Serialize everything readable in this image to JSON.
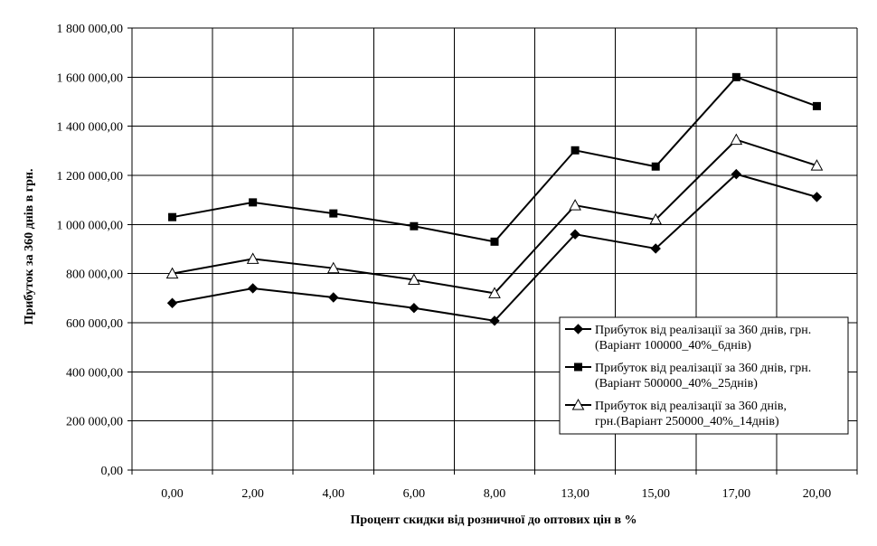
{
  "chart_data": {
    "type": "line",
    "xlabel": "Процент скидки від розничної до оптових цін в %",
    "ylabel": "Прибуток за 360 днів в грн.",
    "categories": [
      "0,00",
      "2,00",
      "4,00",
      "6,00",
      "8,00",
      "13,00",
      "15,00",
      "17,00",
      "20,00"
    ],
    "ylim": [
      0,
      1800000
    ],
    "yticks": [
      0,
      200000,
      400000,
      600000,
      800000,
      1000000,
      1200000,
      1400000,
      1600000,
      1800000
    ],
    "ytick_labels": [
      "0,00",
      "200 000,00",
      "400 000,00",
      "600 000,00",
      "800 000,00",
      "1 000 000,00",
      "1 200 000,00",
      "1 400 000,00",
      "1 600 000,00",
      "1 800 000,00"
    ],
    "grid": true,
    "legend_position": "bottom-right",
    "series": [
      {
        "name": "Прибуток від реалізації за 360 днів, грн. (Варіант 100000_40%_6днів)",
        "legend_lines": [
          "Прибуток від реалізації за 360 днів, грн.",
          "(Варіант 100000_40%_6днів)"
        ],
        "marker": "diamond",
        "values": [
          680000,
          740000,
          703000,
          660000,
          608000,
          960000,
          902000,
          1205000,
          1112000
        ]
      },
      {
        "name": "Прибуток від реалізації за 360 днів, грн. (Варіант 500000_40%_25днів)",
        "legend_lines": [
          "Прибуток від реалізації за 360 днів, грн.",
          "(Варіант 500000_40%_25днів)"
        ],
        "marker": "square",
        "values": [
          1030000,
          1090000,
          1045000,
          993000,
          930000,
          1302000,
          1236000,
          1600000,
          1482000
        ]
      },
      {
        "name": "Прибуток від реалізації за 360 днів, грн.(Варіант 250000_40%_14днів)",
        "legend_lines": [
          "Прибуток від реалізації за 360 днів,",
          "грн.(Варіант 250000_40%_14днів)"
        ],
        "marker": "triangle",
        "values": [
          800000,
          860000,
          822000,
          775000,
          720000,
          1078000,
          1020000,
          1345000,
          1240000
        ]
      }
    ]
  }
}
